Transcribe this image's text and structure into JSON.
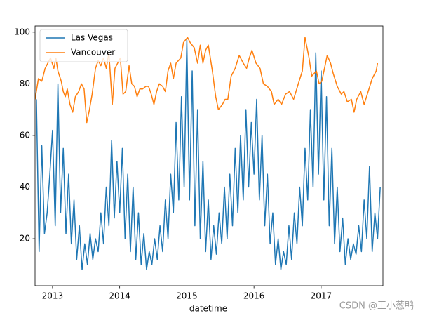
{
  "chart_data": {
    "type": "line",
    "xlabel": "datetime",
    "xlim": [
      2012.74,
      2017.92
    ],
    "xticks": [
      2013,
      2014,
      2015,
      2016,
      2017
    ],
    "ylim": [
      1.8,
      102.4
    ],
    "yticks": [
      20,
      40,
      60,
      80,
      100
    ],
    "legend": "upper left",
    "watermark": "CSDN @王小葱鸭",
    "series": [
      {
        "name": "Las Vegas",
        "color": "#1f77b4",
        "x": [
          2012.76,
          2012.8,
          2012.84,
          2012.88,
          2012.92,
          2012.96,
          2013.0,
          2013.04,
          2013.08,
          2013.12,
          2013.16,
          2013.2,
          2013.24,
          2013.28,
          2013.32,
          2013.36,
          2013.4,
          2013.44,
          2013.48,
          2013.52,
          2013.56,
          2013.6,
          2013.64,
          2013.68,
          2013.72,
          2013.76,
          2013.8,
          2013.84,
          2013.88,
          2013.92,
          2013.96,
          2014.0,
          2014.04,
          2014.08,
          2014.12,
          2014.16,
          2014.2,
          2014.24,
          2014.28,
          2014.32,
          2014.36,
          2014.4,
          2014.44,
          2014.48,
          2014.52,
          2014.56,
          2014.6,
          2014.64,
          2014.68,
          2014.72,
          2014.76,
          2014.8,
          2014.84,
          2014.88,
          2014.92,
          2014.96,
          2015.0,
          2015.04,
          2015.08,
          2015.12,
          2015.16,
          2015.2,
          2015.24,
          2015.28,
          2015.32,
          2015.36,
          2015.4,
          2015.44,
          2015.48,
          2015.52,
          2015.56,
          2015.6,
          2015.64,
          2015.68,
          2015.72,
          2015.76,
          2015.8,
          2015.84,
          2015.88,
          2015.92,
          2015.96,
          2016.0,
          2016.04,
          2016.08,
          2016.12,
          2016.16,
          2016.2,
          2016.24,
          2016.28,
          2016.32,
          2016.36,
          2016.4,
          2016.44,
          2016.48,
          2016.52,
          2016.56,
          2016.6,
          2016.64,
          2016.68,
          2016.72,
          2016.76,
          2016.8,
          2016.84,
          2016.88,
          2016.92,
          2016.96,
          2017.0,
          2017.04,
          2017.08,
          2017.12,
          2017.16,
          2017.2,
          2017.24,
          2017.28,
          2017.32,
          2017.36,
          2017.4,
          2017.44,
          2017.48,
          2017.52,
          2017.56,
          2017.6,
          2017.64,
          2017.68,
          2017.72,
          2017.76,
          2017.8,
          2017.84,
          2017.88
        ],
        "values": [
          74,
          15,
          56,
          22,
          30,
          45,
          62,
          25,
          80,
          30,
          55,
          22,
          45,
          18,
          35,
          12,
          25,
          8,
          18,
          10,
          22,
          12,
          20,
          15,
          30,
          18,
          40,
          25,
          58,
          28,
          50,
          30,
          55,
          20,
          45,
          15,
          40,
          12,
          30,
          10,
          22,
          8,
          15,
          10,
          20,
          12,
          25,
          15,
          35,
          20,
          45,
          30,
          65,
          35,
          75,
          40,
          97,
          35,
          85,
          25,
          70,
          20,
          50,
          15,
          35,
          12,
          25,
          14,
          30,
          18,
          40,
          20,
          45,
          25,
          55,
          30,
          60,
          35,
          70,
          40,
          65,
          45,
          74,
          35,
          60,
          25,
          45,
          18,
          30,
          10,
          20,
          8,
          15,
          10,
          25,
          12,
          30,
          18,
          40,
          25,
          55,
          35,
          70,
          40,
          92,
          45,
          85,
          35,
          75,
          25,
          55,
          18,
          40,
          15,
          28,
          10,
          20,
          12,
          18,
          14,
          25,
          15,
          35,
          20,
          48,
          15,
          30,
          20,
          40
        ]
      },
      {
        "name": "Vancouver",
        "color": "#ff7f0e",
        "x": [
          2012.74,
          2012.79,
          2012.84,
          2012.89,
          2012.93,
          2012.97,
          2013.02,
          2013.05,
          2013.08,
          2013.13,
          2013.16,
          2013.19,
          2013.22,
          2013.26,
          2013.3,
          2013.34,
          2013.39,
          2013.43,
          2013.47,
          2013.51,
          2013.55,
          2013.59,
          2013.64,
          2013.68,
          2013.72,
          2013.76,
          2013.8,
          2013.84,
          2013.89,
          2013.93,
          2013.97,
          2014.01,
          2014.05,
          2014.09,
          2014.14,
          2014.18,
          2014.22,
          2014.26,
          2014.3,
          2014.34,
          2014.39,
          2014.43,
          2014.47,
          2014.51,
          2014.55,
          2014.59,
          2014.64,
          2014.68,
          2014.72,
          2014.76,
          2014.8,
          2014.84,
          2014.91,
          2014.95,
          2015.01,
          2015.05,
          2015.11,
          2015.16,
          2015.2,
          2015.24,
          2015.28,
          2015.32,
          2015.38,
          2015.43,
          2015.47,
          2015.53,
          2015.57,
          2015.61,
          2015.66,
          2015.72,
          2015.78,
          2015.84,
          2015.89,
          2015.93,
          2015.97,
          2016.03,
          2016.09,
          2016.14,
          2016.2,
          2016.26,
          2016.3,
          2016.36,
          2016.41,
          2016.47,
          2016.53,
          2016.59,
          2016.66,
          2016.72,
          2016.76,
          2016.82,
          2016.86,
          2016.93,
          2016.97,
          2017.01,
          2017.05,
          2017.09,
          2017.14,
          2017.18,
          2017.24,
          2017.3,
          2017.34,
          2017.39,
          2017.45,
          2017.49,
          2017.53,
          2017.59,
          2017.64,
          2017.7,
          2017.76,
          2017.82,
          2017.84
        ],
        "values": [
          74,
          82,
          81,
          86,
          88,
          90,
          86,
          90,
          85,
          81,
          77,
          75,
          78,
          72,
          69,
          75,
          77,
          80,
          78,
          65,
          70,
          76,
          86,
          89,
          87,
          90,
          86,
          92,
          72,
          86,
          88,
          90,
          76,
          77,
          87,
          80,
          79,
          75,
          78,
          78,
          79,
          79,
          76,
          72,
          77,
          80,
          79,
          77,
          85,
          88,
          82,
          88,
          90,
          96,
          98,
          96,
          94,
          88,
          95,
          88,
          93,
          95,
          85,
          75,
          70,
          72,
          74,
          74,
          83,
          86,
          91,
          88,
          86,
          90,
          93,
          88,
          86,
          80,
          79,
          77,
          72,
          74,
          72,
          76,
          77,
          74,
          80,
          85,
          98,
          90,
          83,
          85,
          80,
          81,
          86,
          91,
          88,
          84,
          79,
          76,
          77,
          73,
          74,
          69,
          74,
          77,
          72,
          77,
          82,
          85,
          88
        ]
      }
    ]
  }
}
